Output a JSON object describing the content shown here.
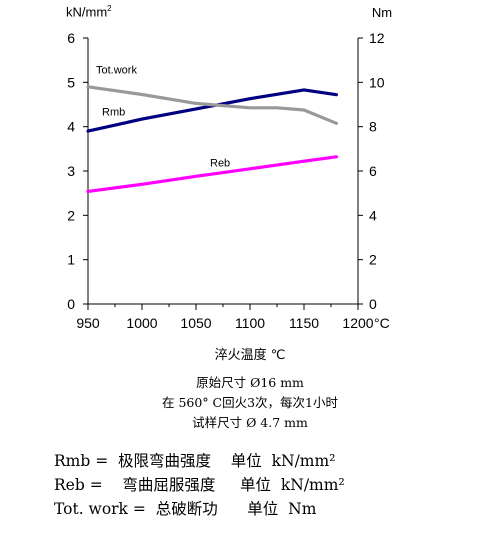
{
  "chart_data": {
    "type": "line",
    "xlabel": "淬火温度 ℃",
    "x_unit": "°C",
    "ylabel_left_base": "kN/mm",
    "ylabel_left_sup": "2",
    "ylabel_right": "Nm",
    "xlim": [
      950,
      1200
    ],
    "ylim_left": [
      0,
      6
    ],
    "ylim_right": [
      0,
      12
    ],
    "x_ticks": [
      "950",
      "1000",
      "1050",
      "1100",
      "1150",
      "1200"
    ],
    "y_left_ticks": [
      "0",
      "1",
      "2",
      "3",
      "4",
      "5",
      "6"
    ],
    "y_right_ticks": [
      "0",
      "2",
      "4",
      "6",
      "8",
      "10",
      "12"
    ],
    "grid": false,
    "series": [
      {
        "name": "Rmb",
        "axis": "left",
        "color": "#000080",
        "x": [
          950,
          1000,
          1050,
          1100,
          1125,
          1150,
          1180
        ],
        "y": [
          3.9,
          4.17,
          4.4,
          4.63,
          4.73,
          4.83,
          4.72
        ]
      },
      {
        "name": "Reb",
        "axis": "left",
        "color": "#ff00ff",
        "x": [
          950,
          1000,
          1050,
          1100,
          1150,
          1180
        ],
        "y": [
          2.54,
          2.7,
          2.88,
          3.05,
          3.22,
          3.32
        ]
      },
      {
        "name": "Tot.work",
        "axis": "right",
        "color": "#999999",
        "x": [
          950,
          1000,
          1050,
          1075,
          1100,
          1125,
          1150,
          1180
        ],
        "y": [
          9.8,
          9.45,
          9.05,
          8.95,
          8.85,
          8.85,
          8.75,
          8.15
        ]
      }
    ]
  },
  "conditions": [
    "原始尺寸 Ø16 mm",
    "在 560° C回火3次，每次1小时",
    "试样尺寸 Ø 4.7 mm"
  ],
  "legend_lines": [
    "Rmb =  极限弯曲强度    单位  kN/mm²",
    "Reb =    弯曲屈服强度     单位  kN/mm²",
    "Tot. work =  总破断功      单位  Nm"
  ]
}
